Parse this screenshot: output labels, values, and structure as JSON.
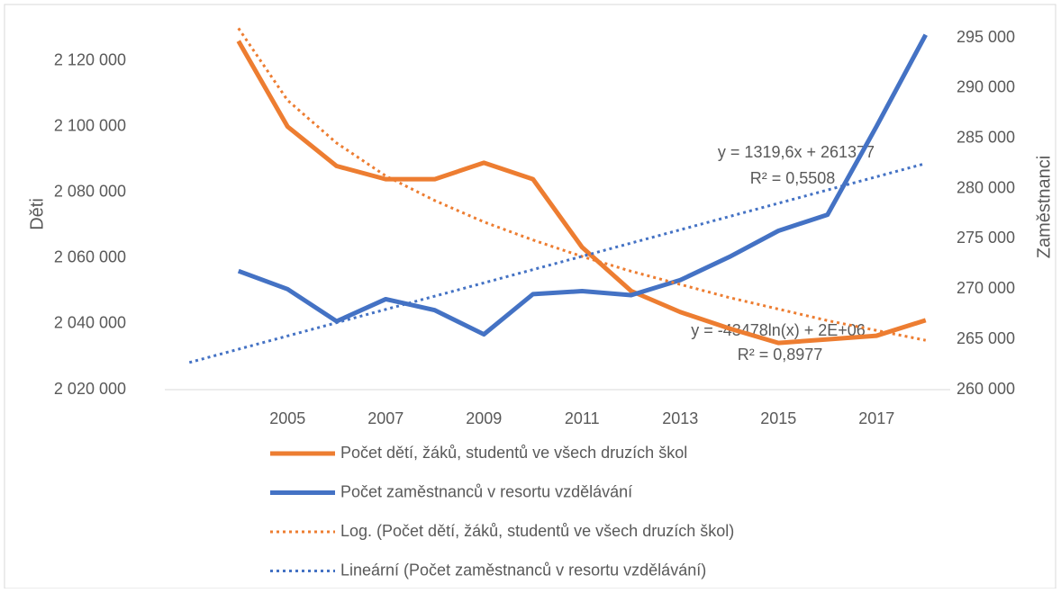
{
  "chart_data": {
    "type": "line",
    "y_label": "Děti",
    "y2_label": "Zaměstnanci",
    "xlim": [
      2002.5,
      2018.5
    ],
    "xticks": [
      2005,
      2007,
      2009,
      2011,
      2013,
      2015,
      2017
    ],
    "ylim": [
      2020000,
      2127000
    ],
    "yticks": [
      {
        "value": 2020000,
        "label": "2 020 000"
      },
      {
        "value": 2040000,
        "label": "2 040 000"
      },
      {
        "value": 2060000,
        "label": "2 060 000"
      },
      {
        "value": 2080000,
        "label": "2 080 000"
      },
      {
        "value": 2100000,
        "label": "2 100 000"
      },
      {
        "value": 2120000,
        "label": "2 120 000"
      }
    ],
    "y2lim": [
      260000,
      295000
    ],
    "y2ticks": [
      {
        "value": 260000,
        "label": "260 000"
      },
      {
        "value": 265000,
        "label": "265 000"
      },
      {
        "value": 270000,
        "label": "270 000"
      },
      {
        "value": 275000,
        "label": "275 000"
      },
      {
        "value": 280000,
        "label": "280 000"
      },
      {
        "value": 285000,
        "label": "285 000"
      },
      {
        "value": 290000,
        "label": "290 000"
      },
      {
        "value": 295000,
        "label": "295 000"
      }
    ],
    "grid": false,
    "legend": "bottom",
    "series": [
      {
        "name": "Počet dětí, žáků, studentů ve všech druzích škol",
        "color": "#ed7d31",
        "dashed": false,
        "x": [
          2004,
          2005,
          2006,
          2007,
          2008,
          2009,
          2010,
          2011,
          2012,
          2013,
          2014,
          2015,
          2016,
          2017,
          2018
        ],
        "values": [
          2126000,
          2100000,
          2088000,
          2084000,
          2084000,
          2089000,
          2084000,
          2063300,
          2050000,
          2043600,
          2038600,
          2034200,
          2035300,
          2036400,
          2041100
        ]
      },
      {
        "name": "Počet zaměstnanců v resortu vzdělávání",
        "color": "#4472c4",
        "dashed": false,
        "axis": "y2",
        "x": [
          2004,
          2005,
          2006,
          2007,
          2008,
          2009,
          2010,
          2011,
          2012,
          2013,
          2014,
          2015,
          2016,
          2017,
          2018
        ],
        "values": [
          271800,
          270000,
          266800,
          269000,
          267900,
          265500,
          269500,
          269800,
          269400,
          270900,
          273200,
          275800,
          277400,
          286200,
          295300
        ]
      },
      {
        "name": "Log. (Počet dětí, žáků, studentů ve všech druzích škol)",
        "color": "#ed7d31",
        "dashed": true,
        "x": [
          2004,
          2005,
          2006,
          2007,
          2008,
          2009,
          2010,
          2011,
          2012,
          2013,
          2014,
          2015,
          2016,
          2017,
          2018
        ],
        "values": [
          2129900,
          2108000,
          2095000,
          2085000,
          2077500,
          2071000,
          2065500,
          2060500,
          2056000,
          2052000,
          2048000,
          2044500,
          2041000,
          2038000,
          2035000
        ]
      },
      {
        "name": "Lineární (Počet zaměstnanců v resortu vzdělávání)",
        "color": "#4472c4",
        "dashed": true,
        "axis": "y2",
        "x": [
          2003,
          2018
        ],
        "values": [
          262700,
          282500
        ]
      }
    ],
    "annotations": [
      "y = 1319,6x + 261377",
      "R² = 0,5508",
      "y = -43478ln(x) + 2E+06",
      "R² = 0,8977"
    ]
  }
}
